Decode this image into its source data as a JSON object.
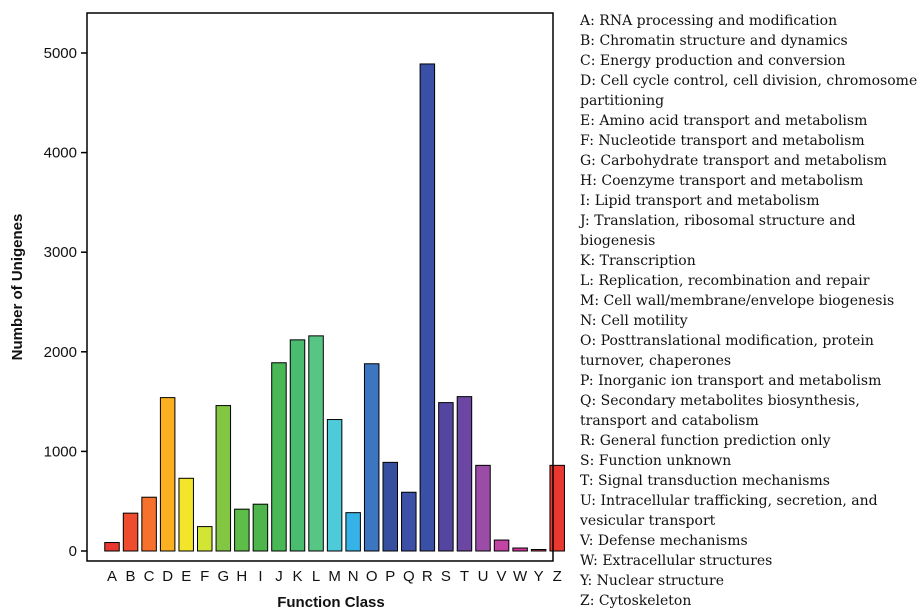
{
  "chart_data": {
    "type": "bar",
    "categories": [
      "A",
      "B",
      "C",
      "D",
      "E",
      "F",
      "G",
      "H",
      "I",
      "J",
      "K",
      "L",
      "M",
      "N",
      "O",
      "P",
      "Q",
      "R",
      "S",
      "T",
      "U",
      "V",
      "W",
      "Y",
      "Z"
    ],
    "values": [
      85,
      380,
      540,
      1540,
      730,
      245,
      1460,
      420,
      470,
      1890,
      2120,
      2160,
      1320,
      385,
      1880,
      890,
      590,
      4890,
      1490,
      1550,
      860,
      110,
      30,
      15,
      860
    ],
    "colors": [
      "#e8382f",
      "#ee4c2f",
      "#f5712c",
      "#fbb022",
      "#f2e52a",
      "#d2e535",
      "#82c641",
      "#5dbd49",
      "#4db54c",
      "#48b755",
      "#49bc6f",
      "#57c584",
      "#4ecbd8",
      "#36b3e6",
      "#3c75c0",
      "#364f9e",
      "#3b50a6",
      "#3a50a6",
      "#5445a0",
      "#6b46a2",
      "#9a4ca6",
      "#c244a3",
      "#d6359a",
      "#e03b5f",
      "#e8382f"
    ],
    "xlabel": "Function Class",
    "ylabel": "Number of Unigenes",
    "ylim": [
      0,
      5500
    ],
    "yticks": [
      0,
      1000,
      2000,
      3000,
      4000,
      5000
    ],
    "grid": false,
    "legend_position": "right",
    "legend": [
      "A: RNA processing and modification",
      "B: Chromatin structure and dynamics",
      "C: Energy production and conversion",
      "D: Cell cycle control, cell division, chromosome partitioning",
      "E: Amino acid transport and metabolism",
      "F: Nucleotide transport and metabolism",
      "G: Carbohydrate transport and metabolism",
      "H: Coenzyme transport and metabolism",
      "I: Lipid transport and metabolism",
      "J: Translation, ribosomal structure and biogenesis",
      "K: Transcription",
      "L: Replication, recombination and repair",
      "M: Cell wall/membrane/envelope biogenesis",
      "N: Cell motility",
      "O: Posttranslational modification, protein turnover, chaperones",
      "P: Inorganic ion transport and metabolism",
      "Q: Secondary metabolites biosynthesis, transport and catabolism",
      "R: General function prediction only",
      "S: Function unknown",
      "T: Signal transduction mechanisms",
      "U: Intracellular trafficking, secretion, and vesicular transport",
      "V: Defense mechanisms",
      "W: Extracellular structures",
      "Y: Nuclear structure",
      "Z: Cytoskeleton"
    ]
  }
}
